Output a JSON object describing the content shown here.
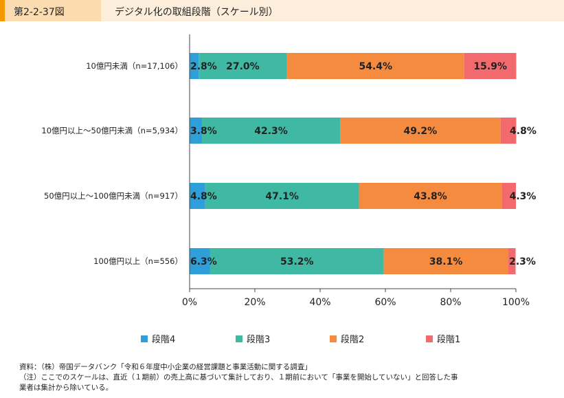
{
  "header": {
    "figure_label": "第2-2-37図",
    "title": "デジタル化の取組段階（スケール別）"
  },
  "colors": {
    "header_accent": "#f39800",
    "header_label_bg": "#fbdcb0",
    "header_title_bg": "#fdeedb",
    "stage4": "#2e9fd8",
    "stage3": "#3fb9a3",
    "stage2": "#f58b3f",
    "stage1": "#f26a6e"
  },
  "chart_data": {
    "type": "bar",
    "orientation": "horizontal",
    "stacked": true,
    "categories": [
      "10億円未満（n=17,106）",
      "10億円以上～50億円未満（n=5,934）",
      "50億円以上～100億円未満（n=917）",
      "100億円以上（n=556）"
    ],
    "series": [
      {
        "name": "段階4",
        "values": [
          2.8,
          3.8,
          4.8,
          6.3
        ]
      },
      {
        "name": "段階3",
        "values": [
          27.0,
          42.3,
          47.1,
          53.2
        ]
      },
      {
        "name": "段階2",
        "values": [
          54.4,
          49.2,
          43.8,
          38.1
        ]
      },
      {
        "name": "段階1",
        "values": [
          15.9,
          4.8,
          4.3,
          2.3
        ]
      }
    ],
    "data_labels": [
      [
        "2.8%",
        "27.0%",
        "54.4%",
        "15.9%"
      ],
      [
        "3.8%",
        "42.3%",
        "49.2%",
        "4.8%"
      ],
      [
        "4.8%",
        "47.1%",
        "43.8%",
        "4.3%"
      ],
      [
        "6.3%",
        "53.2%",
        "38.1%",
        "2.3%"
      ]
    ],
    "xlim": [
      0,
      100
    ],
    "x_ticks": [
      "0%",
      "20%",
      "40%",
      "60%",
      "80%",
      "100%"
    ],
    "grid": false,
    "legend_position": "bottom"
  },
  "legend": [
    {
      "label": "段階4",
      "color_key": "stage4"
    },
    {
      "label": "段階3",
      "color_key": "stage3"
    },
    {
      "label": "段階2",
      "color_key": "stage2"
    },
    {
      "label": "段階1",
      "color_key": "stage1"
    }
  ],
  "notes": [
    "資料：（株）帝国データバンク「令和６年度中小企業の経営課題と事業活動に関する調査」",
    "（注）ここでのスケールは、直近（１期前）の売上高に基づいて集計しており、１期前において「事業を開始していない」と回答した事",
    "業者は集計から除いている。"
  ]
}
